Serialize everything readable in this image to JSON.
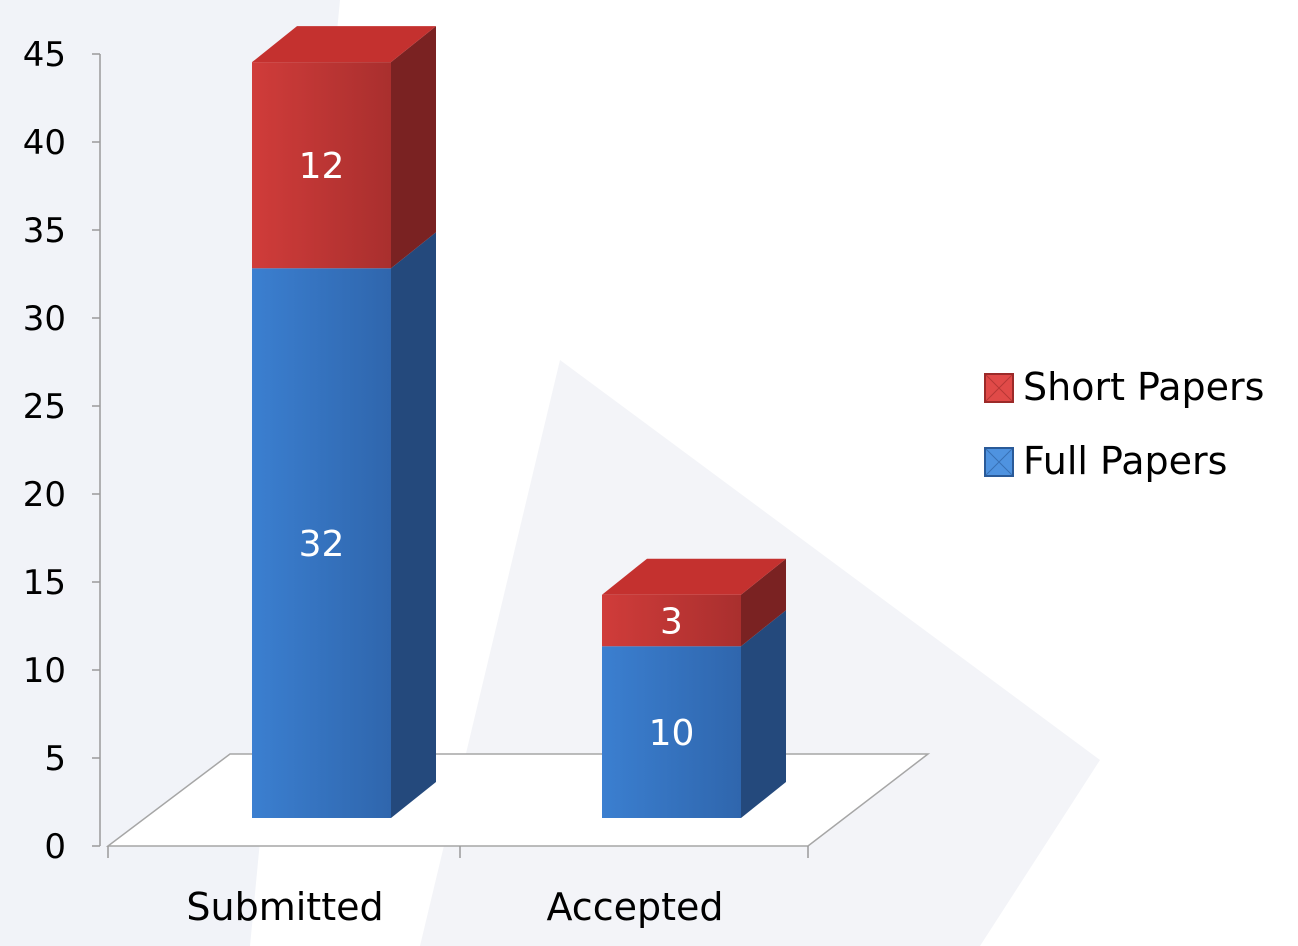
{
  "chart_data": {
    "type": "bar",
    "stacked": true,
    "style": "3d",
    "categories": [
      "Submitted",
      "Accepted"
    ],
    "series": [
      {
        "name": "Full Papers",
        "values": [
          32,
          10
        ],
        "color": "#3a78c4"
      },
      {
        "name": "Short Papers",
        "values": [
          12,
          3
        ],
        "color": "#c0393a"
      }
    ],
    "ylim": [
      0,
      45
    ],
    "yticks": [
      0,
      5,
      10,
      15,
      20,
      25,
      30,
      35,
      40,
      45
    ],
    "grid": false,
    "legend_position": "right"
  }
}
